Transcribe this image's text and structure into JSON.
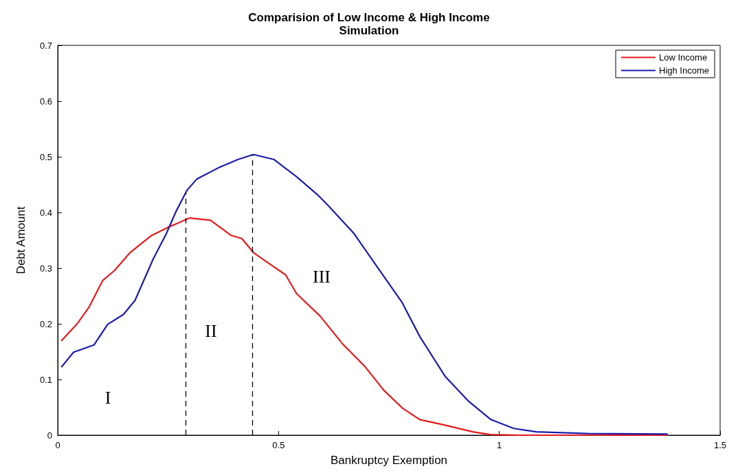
{
  "chart_data": {
    "type": "line",
    "title": "Comparision of Low Income & High Income",
    "subtitle": "Simulation",
    "xlabel": "Bankruptcy Exemption",
    "ylabel": "Debt Amount",
    "xlim": [
      0,
      1.5
    ],
    "xticks": [
      0,
      0.5,
      1,
      1.5
    ],
    "ylim": [
      0,
      0.7
    ],
    "yticks": [
      0,
      0.1,
      0.2,
      0.3,
      0.4,
      0.5,
      0.6,
      0.7
    ],
    "grid": false,
    "legend": "top right",
    "marker": "none",
    "line_style": "solid",
    "series": [
      {
        "name": "Low Income",
        "color": "#e31a1c",
        "x": [
          0.009,
          0.045,
          0.071,
          0.102,
          0.129,
          0.164,
          0.211,
          0.252,
          0.299,
          0.346,
          0.392,
          0.417,
          0.443,
          0.49,
          0.516,
          0.541,
          0.594,
          0.645,
          0.696,
          0.738,
          0.78,
          0.82,
          0.877,
          0.94,
          0.98,
          1.05,
          1.15,
          1.25,
          1.38
        ],
        "values": [
          0.17,
          0.201,
          0.23,
          0.278,
          0.296,
          0.328,
          0.358,
          0.374,
          0.39,
          0.386,
          0.359,
          0.353,
          0.328,
          0.302,
          0.288,
          0.254,
          0.214,
          0.164,
          0.123,
          0.081,
          0.049,
          0.028,
          0.018,
          0.006,
          0.001,
          0,
          0,
          0,
          0
        ]
      },
      {
        "name": "High Income",
        "color": "#1a1aaa",
        "x": [
          0.009,
          0.036,
          0.082,
          0.113,
          0.149,
          0.175,
          0.216,
          0.246,
          0.268,
          0.293,
          0.315,
          0.366,
          0.408,
          0.443,
          0.49,
          0.541,
          0.588,
          0.614,
          0.671,
          0.722,
          0.78,
          0.82,
          0.877,
          0.929,
          0.981,
          1.033,
          1.084,
          1.2,
          1.38
        ],
        "values": [
          0.123,
          0.149,
          0.162,
          0.199,
          0.217,
          0.242,
          0.316,
          0.362,
          0.402,
          0.44,
          0.46,
          0.481,
          0.495,
          0.504,
          0.495,
          0.464,
          0.432,
          0.411,
          0.362,
          0.304,
          0.238,
          0.177,
          0.106,
          0.062,
          0.028,
          0.012,
          0.006,
          0.003,
          0.002
        ]
      }
    ],
    "ref_lines": [
      {
        "axis": "x",
        "value": 0.29,
        "color": "#000000",
        "line_style": "dashed"
      },
      {
        "axis": "x",
        "value": 0.44,
        "color": "#000000",
        "line_style": "dashed"
      }
    ],
    "annotations": [
      "I",
      "II",
      "III"
    ]
  }
}
